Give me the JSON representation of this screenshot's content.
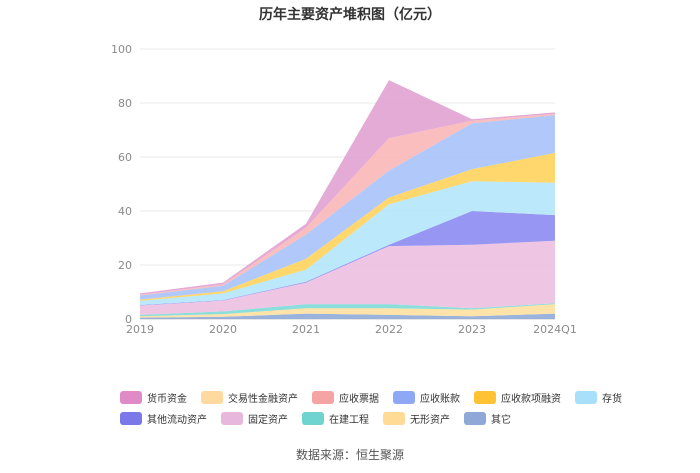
{
  "chart_data": {
    "type": "area",
    "stacked": true,
    "title": "历年主要资产堆积图（亿元）",
    "categories": [
      "2019",
      "2020",
      "2021",
      "2022",
      "2023",
      "2024Q1"
    ],
    "ylim": [
      0,
      100
    ],
    "yticks": [
      0,
      20,
      40,
      60,
      80,
      100
    ],
    "grid": true,
    "series": [
      {
        "name": "其它",
        "color": "#8fabd9",
        "values": [
          0.5,
          0.8,
          2.0,
          1.5,
          1.0,
          2.0
        ]
      },
      {
        "name": "无形资产",
        "color": "#ffe0a0",
        "values": [
          0.5,
          1.0,
          2.0,
          2.5,
          2.5,
          3.5
        ]
      },
      {
        "name": "在建工程",
        "color": "#7fdad8",
        "values": [
          0.5,
          1.0,
          1.5,
          1.5,
          0.5,
          0.3
        ]
      },
      {
        "name": "固定资产",
        "color": "#ecc0e0",
        "values": [
          3.5,
          4.0,
          8.0,
          21.5,
          23.5,
          23.2
        ]
      },
      {
        "name": "其他流动资产",
        "color": "#8c8cf2",
        "values": [
          0.2,
          0.2,
          0.3,
          0.5,
          12.5,
          9.5
        ]
      },
      {
        "name": "存货",
        "color": "#b5e6fb",
        "values": [
          1.5,
          2.5,
          4.5,
          15.0,
          11.0,
          12.0
        ]
      },
      {
        "name": "应收款项融资",
        "color": "#ffd35c",
        "values": [
          0.5,
          0.8,
          4.0,
          2.5,
          4.5,
          11.0
        ]
      },
      {
        "name": "应收账款",
        "color": "#a8c2fb",
        "values": [
          1.5,
          2.0,
          9.0,
          10.0,
          17.0,
          14.0
        ]
      },
      {
        "name": "应收票据",
        "color": "#f9b7b7",
        "values": [
          0.3,
          0.5,
          2.5,
          12.0,
          1.0,
          0.5
        ]
      },
      {
        "name": "货币资金",
        "color": "#e0a2d2",
        "values": [
          0.5,
          0.7,
          1.5,
          21.5,
          0.5,
          0.5
        ]
      }
    ],
    "legend": [
      [
        "货币资金",
        "交易性金融资产",
        "应收票据",
        "应收账款",
        "应收款项融资",
        "存货"
      ],
      [
        "其他流动资产",
        "固定资产",
        "在建工程",
        "无形资产",
        "其它"
      ]
    ],
    "legend_colors": {
      "货币资金": "#e08bc8",
      "交易性金融资产": "#ffd9a0",
      "应收票据": "#f5a3a3",
      "应收账款": "#8fa8f5",
      "应收款项融资": "#ffc233",
      "存货": "#a8dffb",
      "其他流动资产": "#7b78ea",
      "固定资产": "#e8b8dc",
      "在建工程": "#6fd3cf",
      "无形资产": "#ffdb95",
      "其它": "#8fa8d8"
    }
  },
  "footer": {
    "source": "数据来源：恒生聚源"
  }
}
